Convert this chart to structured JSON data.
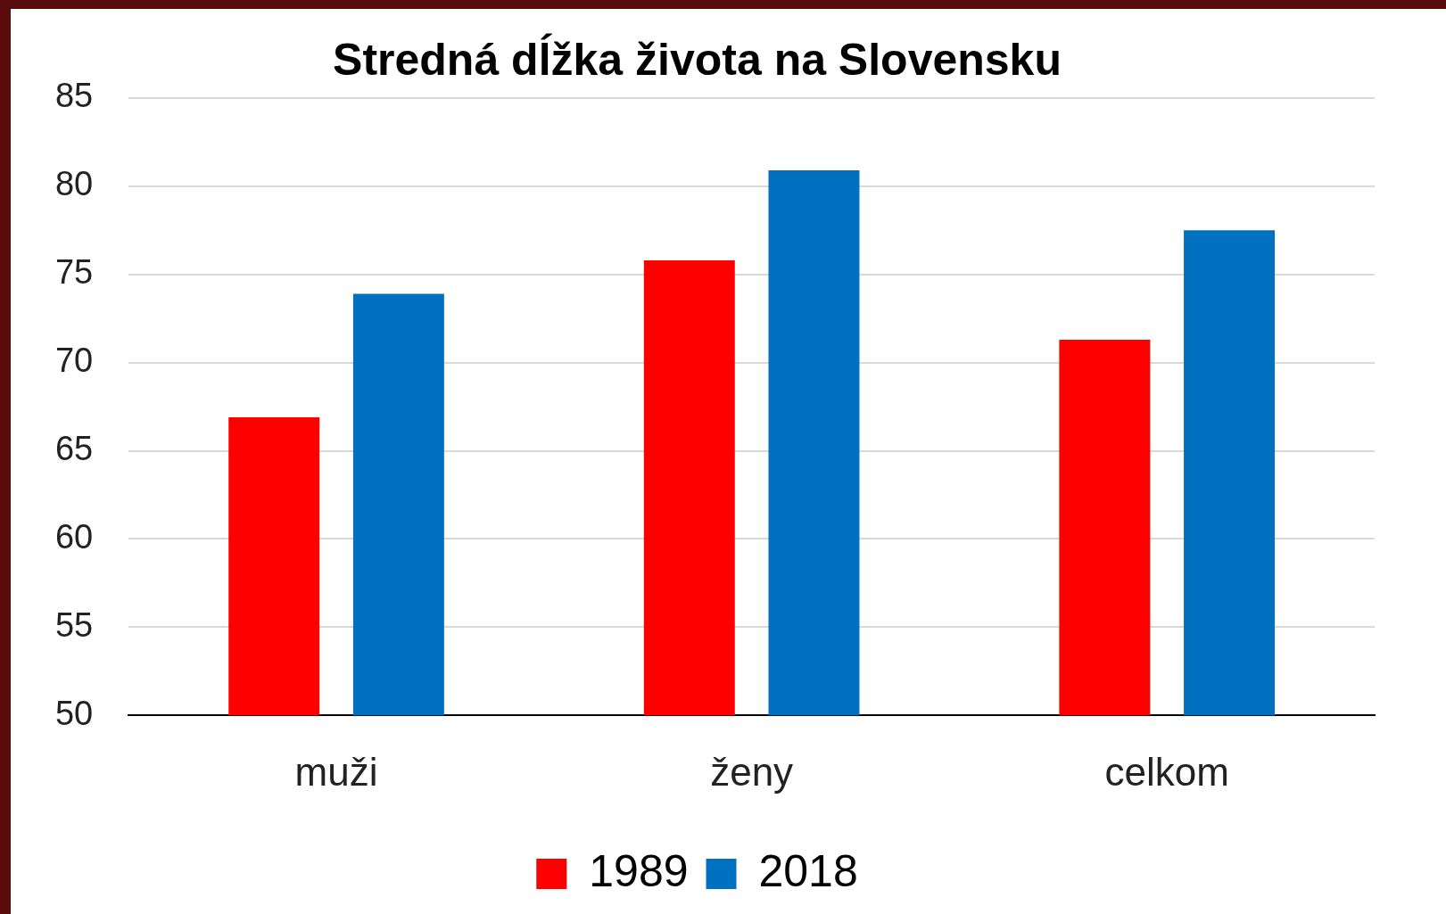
{
  "chart_data": {
    "type": "bar",
    "title": "Stredná dĺžka života na Slovensku",
    "categories": [
      "muži",
      "ženy",
      "celkom"
    ],
    "series": [
      {
        "name": "1989",
        "color": "#ff0000",
        "values": [
          66.9,
          75.8,
          71.3
        ]
      },
      {
        "name": "2018",
        "color": "#0070c0",
        "values": [
          73.9,
          80.9,
          77.5
        ]
      }
    ],
    "ylim": [
      50,
      85
    ],
    "yticks": [
      50,
      55,
      60,
      65,
      70,
      75,
      80,
      85
    ],
    "grid": "y",
    "legend": "bottom"
  }
}
